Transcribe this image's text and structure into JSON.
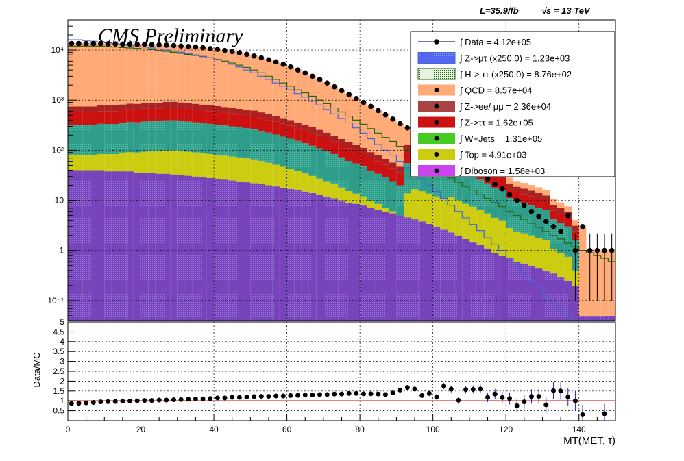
{
  "header": {
    "lumi": "L=35.9/fb",
    "energy": "√s = 13 TeV",
    "cms_label": "CMS Preliminary"
  },
  "chart_data": [
    {
      "type": "area",
      "subtype": "stacked histogram with data points",
      "ylog": true,
      "ylim": [
        0.04,
        40000
      ],
      "xlim": [
        0,
        150
      ],
      "yticks": [
        {
          "v": 0.1,
          "label": "10⁻¹"
        },
        {
          "v": 1,
          "label": "1"
        },
        {
          "v": 10,
          "label": "10"
        },
        {
          "v": 100,
          "label": "10²"
        },
        {
          "v": 1000,
          "label": "10³"
        },
        {
          "v": 10000,
          "label": "10⁴"
        }
      ],
      "grid": true,
      "legend_position": "top-right",
      "x": [
        1,
        3,
        5,
        7,
        9,
        11,
        13,
        15,
        17,
        19,
        21,
        23,
        25,
        27,
        29,
        31,
        33,
        35,
        37,
        39,
        41,
        43,
        45,
        47,
        49,
        51,
        53,
        55,
        57,
        59,
        61,
        63,
        65,
        67,
        69,
        71,
        73,
        75,
        77,
        79,
        81,
        83,
        85,
        87,
        89,
        91,
        93,
        95,
        97,
        99,
        101,
        103,
        105,
        107,
        109,
        111,
        113,
        115,
        117,
        119,
        121,
        123,
        125,
        127,
        129,
        131,
        133,
        135,
        137,
        139,
        141,
        143,
        145,
        147,
        149
      ],
      "series": [
        {
          "name": "Diboson",
          "legend": "∫ Diboson = 1.58e+03",
          "color": "#cc44ee",
          "values": [
            40,
            40,
            40,
            40,
            40,
            38,
            38,
            38,
            38,
            36,
            36,
            35,
            34,
            34,
            33,
            32,
            31,
            30,
            29,
            28,
            27,
            26,
            25,
            24,
            23,
            22,
            21,
            20,
            19,
            18,
            17,
            16,
            15,
            14,
            13,
            12,
            11,
            10,
            9,
            8.5,
            8,
            7,
            6.5,
            6,
            5.5,
            5,
            4.6,
            4.2,
            3.8,
            3.4,
            3.0,
            2.6,
            2.3,
            2.0,
            1.7,
            1.5,
            1.3,
            1.1,
            0.9,
            0.8,
            0.7,
            0.6,
            0.55,
            0.5,
            0.45,
            0.4,
            0.35,
            0.3,
            0.25,
            0.2,
            0.05,
            0.05,
            0.05,
            0.05,
            0.05
          ]
        },
        {
          "name": "Top",
          "legend": "∫ Top = 4.91e+03",
          "color": "#cccc11",
          "values": [
            2,
            2,
            2,
            2,
            2.1,
            2.2,
            2.2,
            2.3,
            2.4,
            2.5,
            2.6,
            2.7,
            2.8,
            2.9,
            3,
            3,
            3,
            3,
            3,
            3,
            3,
            3,
            3,
            3,
            3,
            3,
            2.9,
            2.8,
            2.7,
            2.6,
            2.5,
            2.4,
            2.3,
            2.2,
            2.1,
            2,
            1.9,
            1.8,
            1.7,
            1.6,
            1.5,
            1.4,
            1.3,
            1.2,
            1.1,
            1,
            3,
            4,
            4,
            4,
            4,
            4,
            5,
            5,
            5,
            5,
            5,
            5,
            5,
            5,
            4,
            4,
            4,
            4,
            4,
            4,
            3,
            3,
            3,
            2,
            1,
            1,
            1,
            1,
            1
          ]
        },
        {
          "name": "W+Jets",
          "legend": "∫ W+Jets = 1.31e+05",
          "color": "#44cc22",
          "values": [
            4,
            4,
            4,
            4,
            4,
            4,
            4,
            4,
            4,
            4,
            4,
            4,
            4,
            4,
            4,
            4,
            4,
            4,
            4,
            4,
            4,
            4,
            4,
            4,
            4,
            4,
            4,
            4,
            4,
            4,
            4,
            4,
            4,
            4,
            4,
            4,
            4,
            4,
            4,
            4,
            4,
            4,
            4,
            4,
            4,
            4,
            4,
            4,
            4,
            4,
            4,
            4,
            4,
            4,
            4,
            4,
            4,
            4,
            4,
            4,
            4,
            4,
            4,
            4,
            4,
            4,
            4,
            4,
            4,
            4,
            1,
            1,
            1,
            1,
            1
          ]
        },
        {
          "name": "Z->ττ",
          "legend": "∫ Z->ττ = 1.62e+05",
          "color": "#cc1111",
          "values": [
            1.8,
            1.8,
            1.8,
            1.8,
            1.8,
            1.8,
            1.8,
            1.8,
            1.8,
            1.8,
            1.8,
            1.8,
            1.8,
            1.8,
            1.8,
            1.8,
            1.8,
            1.8,
            1.8,
            1.8,
            1.8,
            1.8,
            1.8,
            1.8,
            1.8,
            1.8,
            1.8,
            1.8,
            1.8,
            1.8,
            1.8,
            1.8,
            1.8,
            1.8,
            1.8,
            1.8,
            1.8,
            1.8,
            1.8,
            1.8,
            1.8,
            1.8,
            1.8,
            1.8,
            1.8,
            1.8,
            1.8,
            1.8,
            1.8,
            1.8,
            1.8,
            1.8,
            1.8,
            1.8,
            1.8,
            1.8,
            1.8,
            1.8,
            1.8,
            1.8,
            1.5,
            1.5,
            1.5,
            1.5,
            1.5,
            1.5,
            1.5,
            1.5,
            1.5,
            1.5,
            1,
            1,
            1,
            1,
            1
          ]
        },
        {
          "name": "Z->ee/ μμ",
          "legend": "∫ Z->ee/ μμ = 2.36e+04",
          "color": "#aa4444",
          "values": [
            1.3,
            1.3,
            1.3,
            1.3,
            1.3,
            1.3,
            1.3,
            1.3,
            1.3,
            1.3,
            1.3,
            1.3,
            1.3,
            1.3,
            1.3,
            1.3,
            1.3,
            1.3,
            1.3,
            1.3,
            1.3,
            1.3,
            1.3,
            1.3,
            1.3,
            1.3,
            1.3,
            1.3,
            1.3,
            1.3,
            1.3,
            1.3,
            1.3,
            1.3,
            1.3,
            1.3,
            1.3,
            1.3,
            1.3,
            1.3,
            1.3,
            1.3,
            1.3,
            1.3,
            1.3,
            1.3,
            1.3,
            1.3,
            1.3,
            1.3,
            1.3,
            1.3,
            1.3,
            1.3,
            1.3,
            1.3,
            1.3,
            1.3,
            1.3,
            1.3,
            1.3,
            1.3,
            1.3,
            1.3,
            1.3,
            1.3,
            1.3,
            1.3,
            1.3,
            1.3,
            1,
            1,
            1,
            1,
            1
          ]
        },
        {
          "name": "QCD",
          "legend": "∫ QCD = 8.57e+04",
          "color": "#ffaa77",
          "values": [
            1.3,
            1.3,
            1.3,
            1.3,
            1.3,
            1.3,
            1.3,
            1.3,
            1.3,
            1.3,
            1.3,
            1.3,
            1.3,
            1.3,
            1.3,
            1.3,
            1.3,
            1.3,
            1.3,
            1.3,
            1.3,
            1.3,
            1.3,
            1.3,
            1.3,
            1.3,
            1.3,
            1.3,
            1.3,
            1.3,
            1.3,
            1.3,
            1.3,
            1.3,
            1.3,
            1.3,
            1.3,
            1.3,
            1.3,
            1.3,
            1.3,
            1.3,
            1.3,
            1.3,
            1.3,
            1.3,
            1.3,
            1.3,
            1.3,
            1.3,
            1.3,
            1.3,
            1.3,
            1.3,
            1.3,
            1.3,
            1.3,
            1.3,
            1.3,
            1.3,
            1.3,
            1.3,
            1.3,
            1.3,
            1.3,
            1.3,
            1.3,
            1.3,
            1.3,
            1.3,
            1,
            1,
            1,
            1,
            1
          ]
        },
        {
          "name": "H-> ττ (x250.0)",
          "legend": "∫ H-> ττ (x250.0) = 8.76e+02",
          "color": "#226611",
          "outline": true,
          "values": [
            12000,
            12000,
            12000,
            12000,
            12000,
            11800,
            11500,
            11200,
            11000,
            10800,
            10500,
            10200,
            9800,
            9400,
            9000,
            8600,
            8200,
            7800,
            7400,
            7000,
            6500,
            6000,
            5500,
            5000,
            4500,
            4000,
            3500,
            3000,
            2600,
            2200,
            1900,
            1600,
            1400,
            1200,
            1000,
            850,
            700,
            580,
            480,
            400,
            330,
            270,
            220,
            180,
            150,
            120,
            100,
            80,
            65,
            52,
            42,
            34,
            28,
            23,
            19,
            16,
            13,
            11,
            9,
            7.5,
            6,
            5,
            4.2,
            3.5,
            2.9,
            2.4,
            2,
            1.7,
            1.4,
            1.2,
            1,
            0.9,
            0.8,
            0.7,
            0.6
          ]
        },
        {
          "name": "Z->μτ (x250.0)",
          "legend": "∫ Z->μτ (x250.0) = 1.23e+03",
          "color": "#4466dd",
          "outline": true,
          "values": [
            16000,
            16000,
            15500,
            15000,
            14500,
            14000,
            13500,
            13000,
            12500,
            12000,
            11500,
            11000,
            10500,
            10000,
            9500,
            9000,
            8500,
            8000,
            7500,
            7000,
            6400,
            5800,
            5200,
            4600,
            4000,
            3500,
            3000,
            2600,
            2200,
            1900,
            1600,
            1350,
            1150,
            950,
            800,
            650,
            530,
            430,
            350,
            280,
            220,
            170,
            130,
            100,
            80,
            60,
            45,
            35,
            27,
            20,
            15,
            11,
            8,
            6,
            4.5,
            3.3,
            2.5,
            1.8,
            1.3,
            1,
            0.7,
            0.5,
            0.35,
            0.25,
            0.18,
            0.12,
            0.09,
            0.07,
            0.05,
            0.04,
            0.04,
            0.04,
            0.04,
            0.04,
            0.04
          ]
        }
      ],
      "data_points": {
        "name": "Data",
        "legend": "∫ Data = 4.12e+05",
        "color": "#000000",
        "values": [
          13500,
          13500,
          13500,
          13500,
          13500,
          13300,
          13200,
          13100,
          13000,
          13000,
          13000,
          12800,
          12700,
          12500,
          12300,
          12000,
          11800,
          11500,
          11100,
          10700,
          10300,
          9800,
          9300,
          8800,
          8200,
          7600,
          7000,
          6400,
          5800,
          5200,
          4600,
          4000,
          3500,
          3000,
          2600,
          2200,
          1850,
          1550,
          1300,
          1080,
          900,
          750,
          620,
          510,
          420,
          340,
          280,
          230,
          190,
          155,
          125,
          100,
          80,
          65,
          52,
          42,
          34,
          27,
          21,
          17,
          13,
          10,
          8,
          6,
          4.8,
          3.8,
          3,
          2.4,
          5,
          1,
          3,
          1,
          1,
          1,
          1
        ]
      },
      "legend": [
        "∫ Data = 4.12e+05",
        "∫ Z->μτ (x250.0) = 1.23e+03",
        "∫ H-> ττ (x250.0) = 8.76e+02",
        "∫ QCD = 8.57e+04",
        "∫ Z->ee/ μμ = 2.36e+04",
        "∫ Z->ττ = 1.62e+05",
        "∫ W+Jets = 1.31e+05",
        "∫ Top = 4.91e+03",
        "∫ Diboson = 1.58e+03"
      ]
    },
    {
      "type": "scatter",
      "subtype": "ratio panel with error bars",
      "ylabel": "Data/MC",
      "xlabel": "MT(MET, τ)",
      "xlim": [
        0,
        150
      ],
      "ylim": [
        0,
        5
      ],
      "yticks": [
        {
          "v": 0.5,
          "label": "0.5"
        },
        {
          "v": 1,
          "label": "1"
        },
        {
          "v": 1.5,
          "label": "1.5"
        },
        {
          "v": 2,
          "label": "2"
        },
        {
          "v": 2.5,
          "label": "2.5"
        },
        {
          "v": 3,
          "label": "3"
        },
        {
          "v": 3.5,
          "label": "3.5"
        },
        {
          "v": 4,
          "label": "4"
        },
        {
          "v": 4.5,
          "label": "4.5"
        },
        {
          "v": 5,
          "label": "5"
        }
      ],
      "xticks": [
        {
          "v": 0,
          "label": "0"
        },
        {
          "v": 20,
          "label": "20"
        },
        {
          "v": 40,
          "label": "40"
        },
        {
          "v": 60,
          "label": "60"
        },
        {
          "v": 80,
          "label": "80"
        },
        {
          "v": 100,
          "label": "100"
        },
        {
          "v": 120,
          "label": "120"
        },
        {
          "v": 140,
          "label": "140"
        }
      ],
      "reference_line": 1,
      "x": [
        1,
        3,
        5,
        7,
        9,
        11,
        13,
        15,
        17,
        19,
        21,
        23,
        25,
        27,
        29,
        31,
        33,
        35,
        37,
        39,
        41,
        43,
        45,
        47,
        49,
        51,
        53,
        55,
        57,
        59,
        61,
        63,
        65,
        67,
        69,
        71,
        73,
        75,
        77,
        79,
        81,
        83,
        85,
        87,
        89,
        91,
        93,
        95,
        97,
        99,
        101,
        103,
        105,
        107,
        109,
        111,
        113,
        115,
        117,
        119,
        121,
        123,
        125,
        127,
        129,
        131,
        133,
        135,
        137,
        139,
        141,
        147
      ],
      "values": [
        0.87,
        0.88,
        0.9,
        0.92,
        0.95,
        0.96,
        0.97,
        0.98,
        0.99,
        1.0,
        1.02,
        1.02,
        1.04,
        1.04,
        1.06,
        1.07,
        1.08,
        1.1,
        1.1,
        1.12,
        1.15,
        1.15,
        1.18,
        1.18,
        1.2,
        1.22,
        1.23,
        1.23,
        1.25,
        1.25,
        1.27,
        1.28,
        1.3,
        1.3,
        1.32,
        1.32,
        1.35,
        1.35,
        1.38,
        1.38,
        1.36,
        1.36,
        1.35,
        1.32,
        1.4,
        1.55,
        1.68,
        1.6,
        1.27,
        1.38,
        1.2,
        1.75,
        1.6,
        1.03,
        1.57,
        1.58,
        1.6,
        1.18,
        1.35,
        1.17,
        1.12,
        0.75,
        0.95,
        1.22,
        1.23,
        0.8,
        1.52,
        1.5,
        1.2,
        1.0,
        0.3,
        0.35
      ],
      "errors": [
        0.02,
        0.02,
        0.02,
        0.02,
        0.02,
        0.02,
        0.02,
        0.02,
        0.02,
        0.02,
        0.02,
        0.02,
        0.02,
        0.02,
        0.02,
        0.02,
        0.02,
        0.02,
        0.02,
        0.02,
        0.02,
        0.02,
        0.02,
        0.02,
        0.02,
        0.03,
        0.03,
        0.03,
        0.03,
        0.03,
        0.03,
        0.03,
        0.04,
        0.04,
        0.04,
        0.04,
        0.05,
        0.05,
        0.05,
        0.06,
        0.06,
        0.07,
        0.07,
        0.08,
        0.09,
        0.1,
        0.11,
        0.12,
        0.13,
        0.14,
        0.15,
        0.16,
        0.17,
        0.18,
        0.19,
        0.2,
        0.22,
        0.24,
        0.26,
        0.28,
        0.3,
        0.32,
        0.34,
        0.36,
        0.38,
        0.4,
        0.42,
        0.44,
        0.46,
        0.5,
        0.5,
        0.5
      ]
    }
  ]
}
